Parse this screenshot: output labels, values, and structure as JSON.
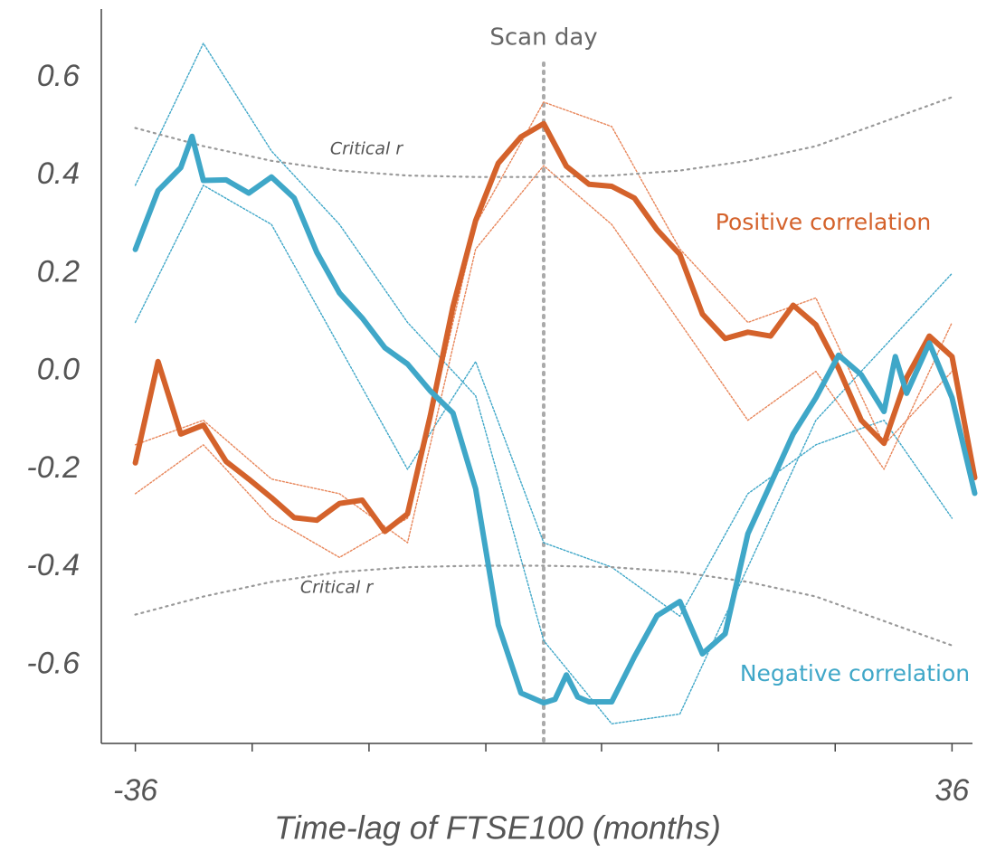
{
  "chart_data": {
    "type": "line",
    "xlabel": "Time-lag of FTSE100 (months)",
    "xlim": [
      -39,
      39
    ],
    "xticks": [
      -36,
      {
        "value": -25.7,
        "label": null
      },
      {
        "value": -15.4,
        "label": null
      },
      {
        "value": -5.1,
        "label": null
      },
      {
        "value": 5.1,
        "label": null
      },
      {
        "value": 15.4,
        "label": null
      },
      {
        "value": 25.7,
        "label": null
      },
      36
    ],
    "ylim": [
      -0.76,
      0.74
    ],
    "yticks": [
      -0.6,
      -0.4,
      -0.2,
      {
        "value": 0,
        "label": "0.0"
      },
      0.2,
      0.4,
      0.6
    ],
    "grid": false,
    "annotations": [
      {
        "text": "Scan day",
        "x": 0
      }
    ],
    "series": [
      {
        "color": "#3fa7c8",
        "dashed": true,
        "x": [
          -36,
          -30,
          -24,
          -18,
          -12,
          -6,
          0,
          6,
          12,
          18,
          24,
          30,
          36
        ],
        "values": [
          0.38,
          0.67,
          0.45,
          0.3,
          0.1,
          -0.05,
          -0.55,
          -0.72,
          -0.7,
          -0.4,
          -0.1,
          0.05,
          0.2
        ]
      },
      {
        "color": "#3fa7c8",
        "dashed": true,
        "x": [
          -36,
          -30,
          -24,
          -18,
          -12,
          -6,
          0,
          6,
          12,
          18,
          24,
          30,
          36
        ],
        "values": [
          0.1,
          0.38,
          0.3,
          0.05,
          -0.2,
          0.02,
          -0.35,
          -0.4,
          -0.5,
          -0.25,
          -0.15,
          -0.1,
          -0.3
        ]
      },
      {
        "color": "#e8865a",
        "dashed": true,
        "x": [
          -36,
          -30,
          -24,
          -18,
          -12,
          -6,
          0,
          6,
          12,
          18,
          24,
          30,
          36
        ],
        "values": [
          -0.25,
          -0.15,
          -0.3,
          -0.38,
          -0.3,
          0.3,
          0.55,
          0.5,
          0.25,
          0.1,
          0.15,
          -0.15,
          0.0
        ]
      },
      {
        "color": "#e8865a",
        "dashed": true,
        "x": [
          -36,
          -30,
          -24,
          -18,
          -12,
          -6,
          0,
          6,
          12,
          18,
          24,
          30,
          36
        ],
        "values": [
          -0.15,
          -0.1,
          -0.22,
          -0.25,
          -0.35,
          0.25,
          0.42,
          0.3,
          0.1,
          -0.1,
          0.0,
          -0.2,
          0.1
        ]
      },
      {
        "name": "Critical r",
        "color": "#999999",
        "dashed": true,
        "x": [
          -36,
          -30,
          -24,
          -18,
          -12,
          -6,
          0,
          6,
          12,
          18,
          24,
          30,
          36
        ],
        "values": [
          0.497,
          0.46,
          0.43,
          0.41,
          0.4,
          0.397,
          0.397,
          0.4,
          0.41,
          0.43,
          0.46,
          0.51,
          0.56
        ]
      },
      {
        "name": "Critical r",
        "color": "#999999",
        "dashed": true,
        "x": [
          -36,
          -30,
          -24,
          -18,
          -12,
          -6,
          0,
          6,
          12,
          18,
          24,
          30,
          36
        ],
        "values": [
          -0.497,
          -0.46,
          -0.43,
          -0.41,
          -0.4,
          -0.397,
          -0.397,
          -0.4,
          -0.41,
          -0.43,
          -0.46,
          -0.51,
          -0.56
        ]
      },
      {
        "name": "Positive correlation",
        "color": "#d4622b",
        "dashed": false,
        "x": [
          -36,
          -34,
          -32,
          -30,
          -28,
          -26,
          -24,
          -22,
          -20,
          -18,
          -16,
          -14,
          -12,
          -10,
          -8,
          -6,
          -4,
          -2,
          0,
          2,
          4,
          6,
          8,
          10,
          12,
          14,
          16,
          18,
          20,
          22,
          24,
          26,
          28,
          30,
          32,
          34,
          36,
          38
        ],
        "values": [
          -0.187,
          0.02,
          -0.128,
          -0.11,
          -0.184,
          -0.22,
          -0.258,
          -0.299,
          -0.304,
          -0.27,
          -0.263,
          -0.327,
          -0.291,
          -0.091,
          0.132,
          0.308,
          0.425,
          0.479,
          0.506,
          0.419,
          0.382,
          0.378,
          0.354,
          0.289,
          0.239,
          0.117,
          0.067,
          0.08,
          0.072,
          0.135,
          0.095,
          0.006,
          -0.1,
          -0.147,
          -0.013,
          0.072,
          0.03,
          -0.217
        ]
      },
      {
        "name": "Negative correlation",
        "color": "#3fa7c8",
        "dashed": false,
        "x": [
          -36,
          -34,
          -32,
          -31,
          -30,
          -28,
          -26,
          -24,
          -22,
          -20,
          -18,
          -16,
          -14,
          -12,
          -10,
          -8,
          -6,
          -4,
          -2,
          0,
          1,
          2,
          3,
          4,
          6,
          8,
          10,
          12,
          14,
          16,
          18,
          20,
          22,
          24,
          26,
          28,
          30,
          31,
          32,
          34,
          36,
          38
        ],
        "values": [
          0.249,
          0.369,
          0.416,
          0.48,
          0.39,
          0.391,
          0.364,
          0.397,
          0.354,
          0.243,
          0.16,
          0.109,
          0.048,
          0.015,
          -0.04,
          -0.085,
          -0.24,
          -0.518,
          -0.657,
          -0.677,
          -0.67,
          -0.62,
          -0.665,
          -0.675,
          -0.675,
          -0.583,
          -0.499,
          -0.47,
          -0.577,
          -0.536,
          -0.332,
          -0.23,
          -0.128,
          -0.054,
          0.033,
          -0.007,
          -0.082,
          0.03,
          -0.045,
          0.058,
          -0.054,
          -0.249
        ]
      }
    ]
  }
}
